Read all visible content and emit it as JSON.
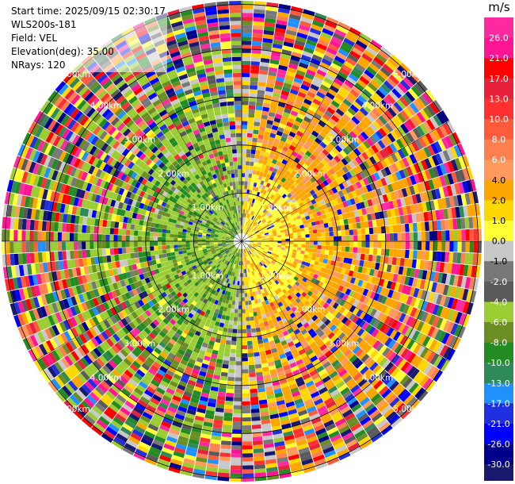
{
  "header": {
    "start_time": "Start time: 2025/09/15 02:30:17",
    "instrument": "WLS200s-181",
    "field": "Field: VEL",
    "elevation": "Elevation(deg): 35.00",
    "nrays": "NRays: 120"
  },
  "colorbar": {
    "title": "m/s",
    "ticks": [
      "26.0",
      "21.0",
      "17.0",
      "13.0",
      "10.0",
      "8.0",
      "6.0",
      "4.0",
      "2.0",
      "1.0",
      "0.0",
      "-1.0",
      "-2.0",
      "-4.0",
      "-6.0",
      "-8.0",
      "-10.0",
      "-13.0",
      "-17.0",
      "-21.0",
      "-26.0",
      "-30.0"
    ],
    "colors": [
      "#ff2aa0",
      "#ff1493",
      "#ff0000",
      "#e8203a",
      "#ff3030",
      "#ff5a3c",
      "#ff7f50",
      "#ff9a5c",
      "#ffa500",
      "#ffd700",
      "#ffff33",
      "#c8c8c8",
      "#787878",
      "#5a5a5a",
      "#9acd32",
      "#6b8e23",
      "#228b22",
      "#2e8b57",
      "#1e90ff",
      "#2030e0",
      "#0000ff",
      "#00008b",
      "#191970"
    ]
  },
  "chart_data": {
    "type": "polar ppi",
    "field": "VEL",
    "units": "m/s",
    "nrays": 120,
    "max_range_km": 5.0,
    "range_rings_km": [
      1.0,
      2.0,
      3.0,
      4.0,
      5.0
    ],
    "ring_labels": [
      "1.00km",
      "2.00km",
      "3.00km",
      "4.00km",
      "5.00km"
    ],
    "pattern": {
      "near_east": "positive 1 to 6 m/s (yellow/orange)",
      "near_west": "negative -1 to -8 m/s (green)",
      "outer": "noisy mixed values -30 to 26 m/s"
    }
  }
}
